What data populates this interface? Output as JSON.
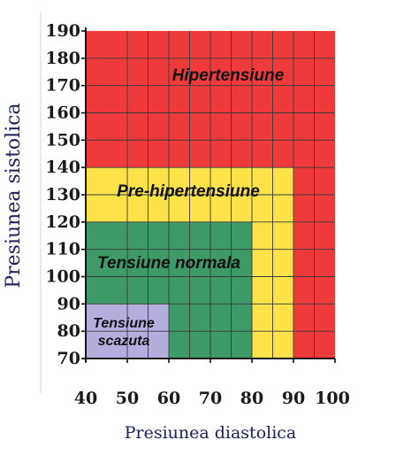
{
  "chart_data": {
    "type": "area",
    "xlabel": "Presiunea diastolica",
    "ylabel": "Presiunea sistolica",
    "xlim": [
      40,
      100
    ],
    "ylim": [
      70,
      190
    ],
    "x_ticks": [
      "40",
      "50",
      "60",
      "70",
      "80",
      "90",
      "100"
    ],
    "y_ticks": [
      "70",
      "80",
      "90",
      "100",
      "110",
      "120",
      "130",
      "140",
      "150",
      "160",
      "170",
      "180",
      "190"
    ],
    "grid": true,
    "zones": [
      {
        "name": "Hipertensiune",
        "color": "#ee3a3a",
        "x_max": 100,
        "y_max": 190
      },
      {
        "name": "Pre-hipertensiune",
        "color": "#fde24a",
        "x_max": 90,
        "y_max": 140
      },
      {
        "name": "Tensiune normala",
        "color": "#3e9a68",
        "x_max": 80,
        "y_max": 120
      },
      {
        "name": "Tensiune scazuta",
        "color": "#b3aede",
        "x_max": 60,
        "y_max": 90
      }
    ]
  }
}
